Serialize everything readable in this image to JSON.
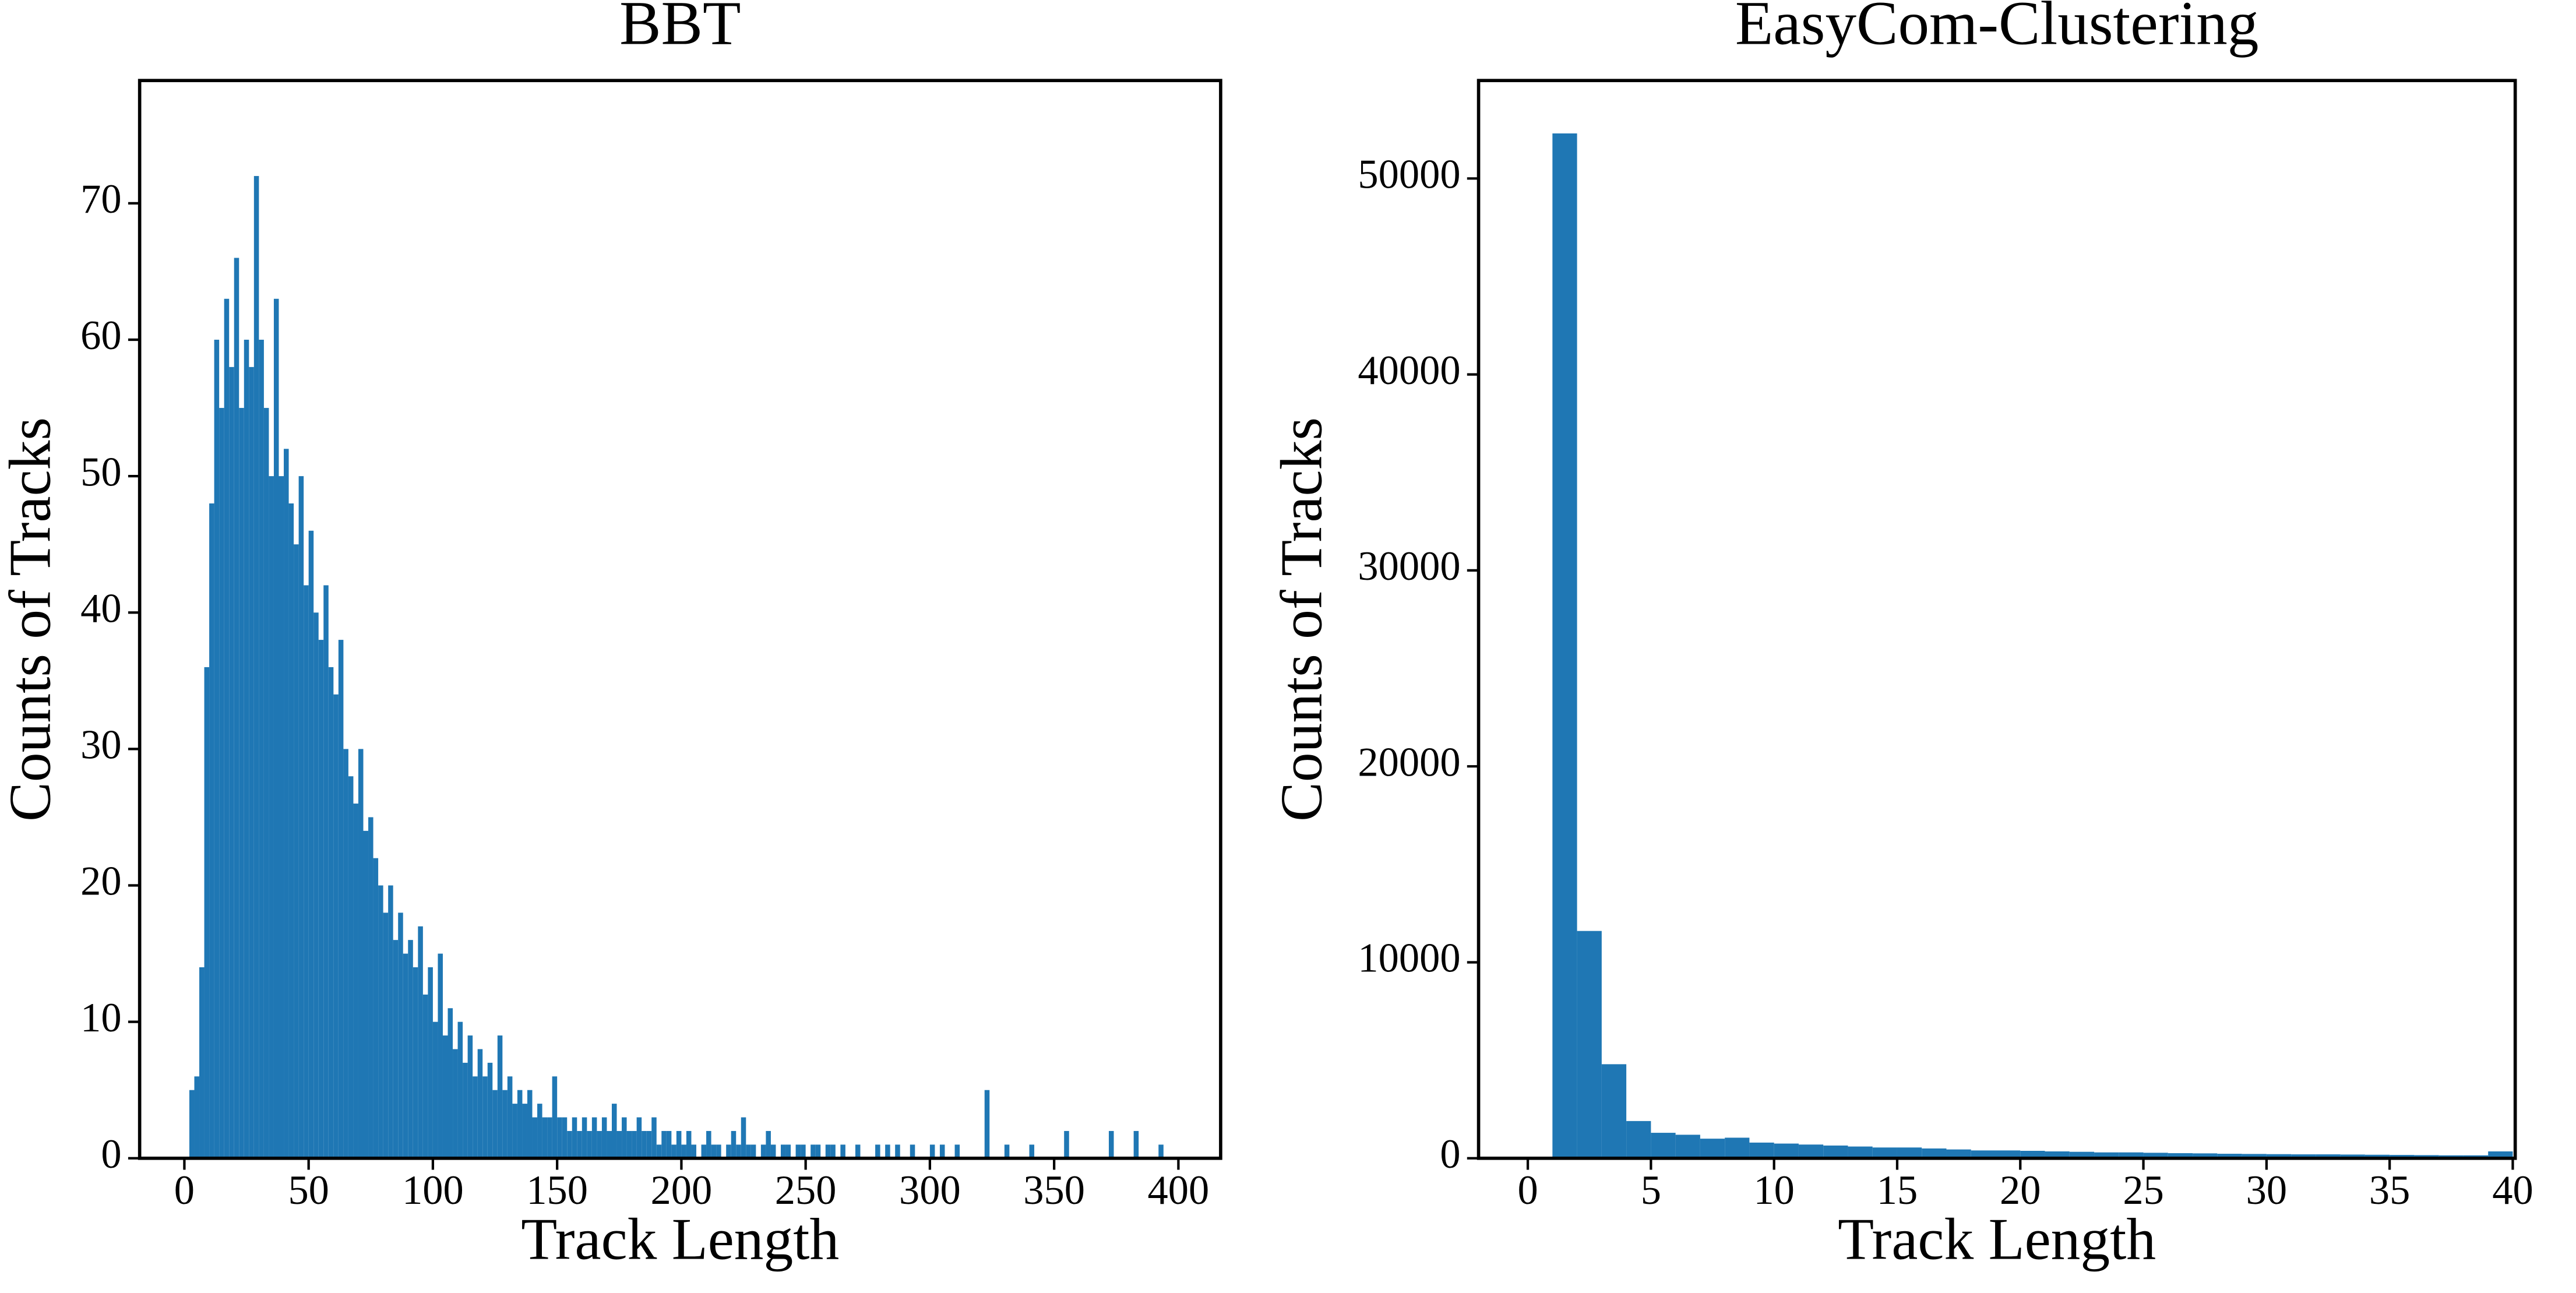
{
  "chart_data": [
    {
      "type": "histogram",
      "title": "BBT",
      "x_label": "Track Length",
      "y_label": "Counts of Tracks",
      "color": "#1f77b4",
      "bins": [
        2,
        4,
        6,
        8,
        10,
        12,
        14,
        16,
        18,
        20,
        22,
        24,
        26,
        28,
        30,
        32,
        34,
        36,
        38,
        40,
        42,
        44,
        46,
        48,
        50,
        52,
        54,
        56,
        58,
        60,
        62,
        64,
        66,
        68,
        70,
        72,
        74,
        76,
        78,
        80,
        82,
        84,
        86,
        88,
        90,
        92,
        94,
        96,
        98,
        100,
        102,
        104,
        106,
        108,
        110,
        112,
        114,
        116,
        118,
        120,
        122,
        124,
        126,
        128,
        130,
        132,
        134,
        136,
        138,
        140,
        142,
        144,
        146,
        148,
        150,
        152,
        154,
        156,
        158,
        160,
        162,
        164,
        166,
        168,
        170,
        172,
        174,
        176,
        178,
        180,
        182,
        184,
        186,
        188,
        190,
        192,
        194,
        196,
        198,
        200,
        202,
        204,
        206,
        208,
        210,
        212,
        214,
        216,
        218,
        220,
        222,
        224,
        226,
        228,
        230,
        232,
        234,
        236,
        238,
        240,
        242,
        244,
        246,
        248,
        250,
        252,
        254,
        256,
        258,
        260,
        262,
        264,
        266,
        268,
        270,
        272,
        274,
        276,
        278,
        280,
        282,
        284,
        286,
        288,
        290,
        292,
        294,
        296,
        298,
        300,
        302,
        304,
        306,
        308,
        310,
        312,
        314,
        316,
        318,
        320,
        322,
        324,
        326,
        328,
        330,
        332,
        334,
        336,
        338,
        340,
        342,
        344,
        346,
        348,
        350,
        352,
        354,
        356,
        358,
        360,
        362,
        364,
        366,
        368,
        370,
        372,
        374,
        376,
        378,
        380,
        382,
        384,
        386,
        388,
        390,
        392,
        394,
        396,
        398,
        400
      ],
      "values": [
        5,
        6,
        14,
        36,
        48,
        60,
        55,
        63,
        58,
        66,
        55,
        60,
        58,
        72,
        60,
        55,
        50,
        63,
        50,
        52,
        48,
        45,
        50,
        42,
        46,
        40,
        38,
        42,
        36,
        34,
        38,
        30,
        28,
        26,
        30,
        24,
        25,
        22,
        20,
        18,
        20,
        16,
        18,
        15,
        16,
        14,
        17,
        12,
        14,
        10,
        15,
        9,
        11,
        8,
        10,
        7,
        9,
        6,
        8,
        6,
        7,
        5,
        9,
        5,
        6,
        4,
        5,
        4,
        5,
        3,
        4,
        3,
        3,
        6,
        3,
        3,
        2,
        3,
        2,
        3,
        2,
        3,
        2,
        3,
        2,
        4,
        2,
        3,
        2,
        2,
        3,
        2,
        2,
        3,
        1,
        2,
        2,
        1,
        2,
        1,
        2,
        1,
        0,
        1,
        2,
        1,
        1,
        0,
        1,
        2,
        1,
        3,
        1,
        1,
        0,
        1,
        2,
        1,
        0,
        1,
        1,
        0,
        1,
        1,
        0,
        1,
        1,
        0,
        1,
        1,
        0,
        1,
        0,
        0,
        1,
        0,
        0,
        0,
        1,
        0,
        1,
        0,
        1,
        0,
        0,
        1,
        0,
        0,
        0,
        1,
        0,
        1,
        0,
        0,
        1,
        0,
        0,
        0,
        0,
        0,
        5,
        0,
        0,
        0,
        1,
        0,
        0,
        0,
        0,
        1,
        0,
        0,
        0,
        0,
        0,
        0,
        2,
        0,
        0,
        0,
        0,
        0,
        0,
        0,
        0,
        2,
        0,
        0,
        0,
        0,
        2,
        0,
        0,
        0,
        0,
        1,
        0,
        0,
        0
      ],
      "xlim": [
        -18,
        417
      ],
      "ylim": [
        0,
        79
      ],
      "xticks": [
        0,
        50,
        100,
        150,
        200,
        250,
        300,
        350,
        400
      ],
      "yticks": [
        0,
        10,
        20,
        30,
        40,
        50,
        60,
        70
      ]
    },
    {
      "type": "histogram",
      "title": "EasyCom-Clustering",
      "x_label": "Track Length",
      "y_label": "Counts of Tracks",
      "color": "#1f77b4",
      "bins": [
        1,
        2,
        3,
        4,
        5,
        6,
        7,
        8,
        9,
        10,
        11,
        12,
        13,
        14,
        15,
        16,
        17,
        18,
        19,
        20,
        21,
        22,
        23,
        24,
        25,
        26,
        27,
        28,
        29,
        30,
        31,
        32,
        33,
        34,
        35,
        36,
        37,
        38,
        39,
        40
      ],
      "values": [
        52300,
        11600,
        4800,
        1900,
        1300,
        1200,
        1000,
        1050,
        800,
        750,
        700,
        650,
        600,
        550,
        550,
        500,
        450,
        400,
        400,
        380,
        350,
        330,
        300,
        300,
        280,
        260,
        250,
        230,
        220,
        210,
        200,
        200,
        190,
        180,
        170,
        160,
        150,
        150,
        350
      ],
      "xlim": [
        -2,
        40.1
      ],
      "ylim": [
        0,
        55000
      ],
      "xticks": [
        0,
        5,
        10,
        15,
        20,
        25,
        30,
        35,
        40
      ],
      "yticks": [
        0,
        10000,
        20000,
        30000,
        40000,
        50000
      ]
    }
  ]
}
